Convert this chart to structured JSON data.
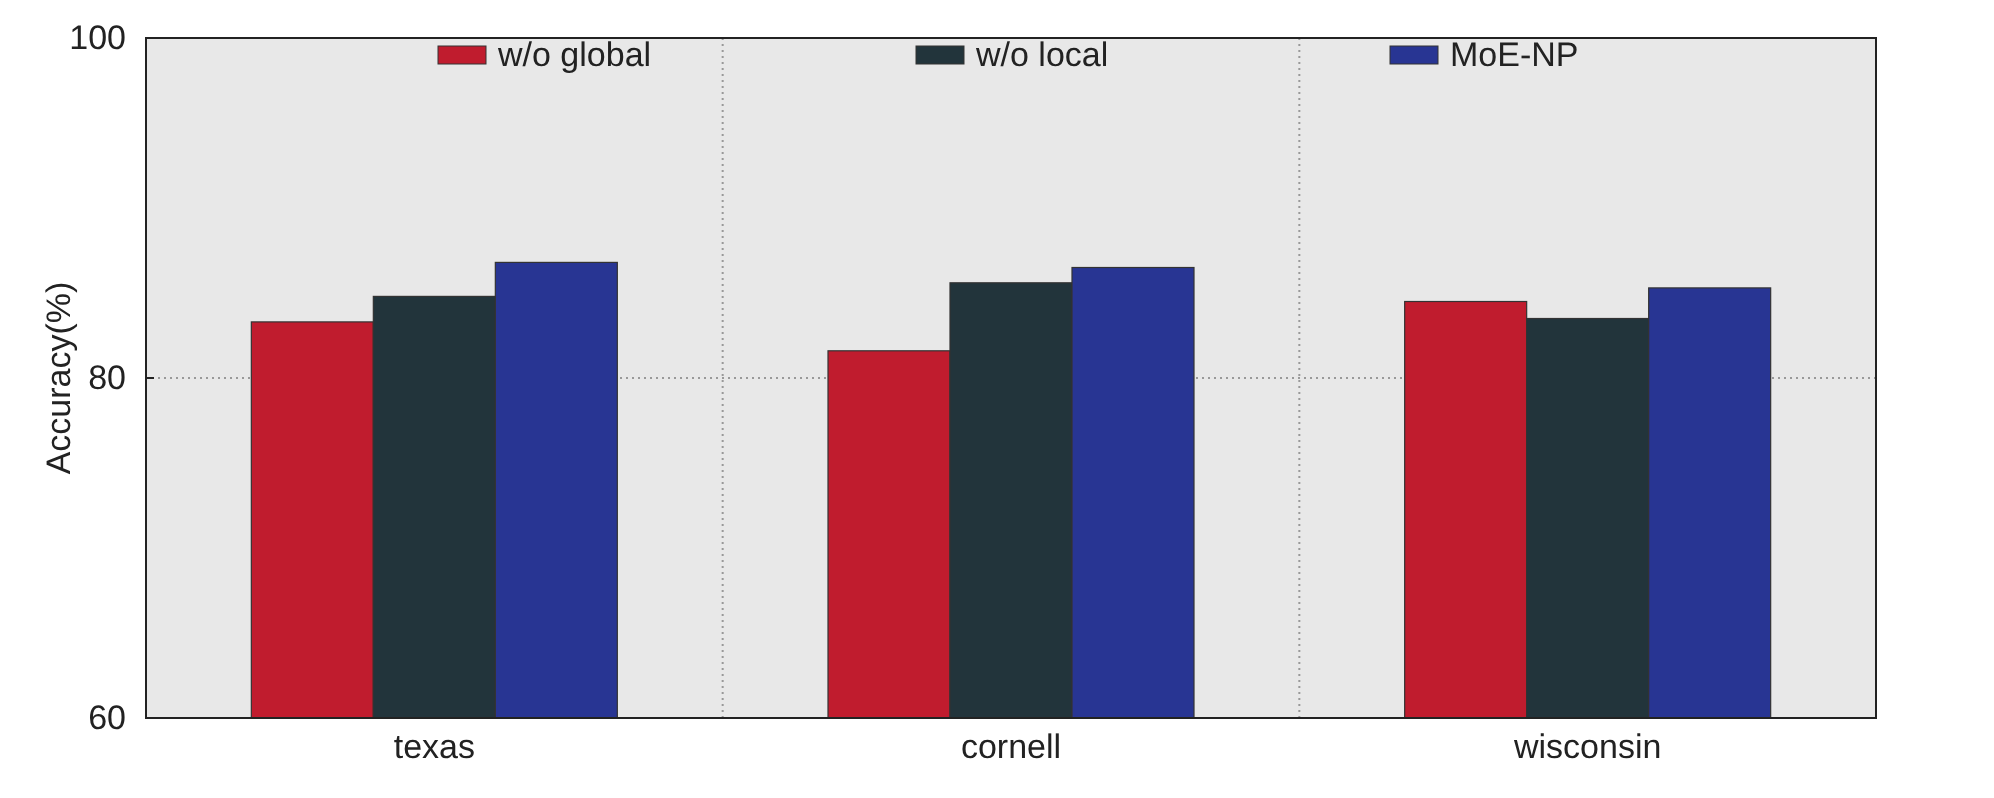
{
  "chart_data": {
    "type": "bar",
    "categories": [
      "texas",
      "cornell",
      "wisconsin"
    ],
    "series": [
      {
        "name": "w/o global",
        "color": "#c01c2e",
        "values": [
          83.3,
          81.6,
          84.5
        ]
      },
      {
        "name": "w/o local",
        "color": "#22343b",
        "values": [
          84.8,
          85.6,
          83.5
        ]
      },
      {
        "name": "MoE-NP",
        "color": "#283593",
        "values": [
          86.8,
          86.5,
          85.3
        ]
      }
    ],
    "ylabel": "Accuracy(%)",
    "ylim": [
      60,
      100
    ],
    "yticks": [
      60,
      80,
      100
    ],
    "grid": true,
    "legend": "top"
  }
}
